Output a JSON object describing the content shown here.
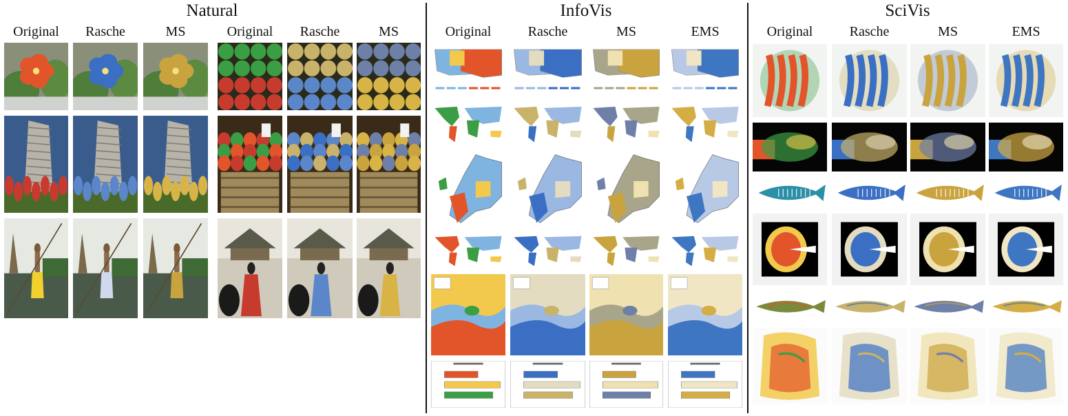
{
  "sections": [
    {
      "title": "Natural",
      "groups": [
        {
          "headers": [
            "Original",
            "Rasche",
            "MS"
          ]
        },
        {
          "headers": [
            "Original",
            "Rasche",
            "MS"
          ]
        }
      ],
      "rows": 3
    },
    {
      "title": "InfoVis",
      "groups": [
        {
          "headers": [
            "Original",
            "Rasche",
            "MS",
            "EMS"
          ]
        }
      ],
      "rows": 6
    },
    {
      "title": "SciVis",
      "groups": [
        {
          "headers": [
            "Original",
            "Rasche",
            "MS",
            "EMS"
          ]
        }
      ],
      "rows": 6
    }
  ],
  "palettes": {
    "original": [
      "#e2552a",
      "#3c9e44",
      "#c73b2f",
      "#f2c94c",
      "#7fb3e0"
    ],
    "rasche": [
      "#3a6fc4",
      "#c9b26a",
      "#5b86c9",
      "#e4dcc0",
      "#9ab8e2"
    ],
    "ms": [
      "#c9a33e",
      "#6e7fa8",
      "#d8b447",
      "#efe2b0",
      "#a9a58a"
    ],
    "ems": [
      "#3f76c2",
      "#d4ad45",
      "#6f97d3",
      "#f0e6c4",
      "#b8c9e6"
    ]
  },
  "thumbnail_contents": {
    "natural": [
      "flower",
      "apples",
      "building-tulips",
      "peppers",
      "spear-fisher",
      "korean-palace"
    ],
    "infovis": [
      "us-choropleth",
      "world-map",
      "europe-map",
      "world-map-2",
      "europe-heatmap",
      "bar-chart"
    ],
    "scivis": [
      "volume-engine",
      "smoke-plume",
      "fish-xray",
      "head-ct",
      "carp",
      "torso-volume"
    ]
  }
}
